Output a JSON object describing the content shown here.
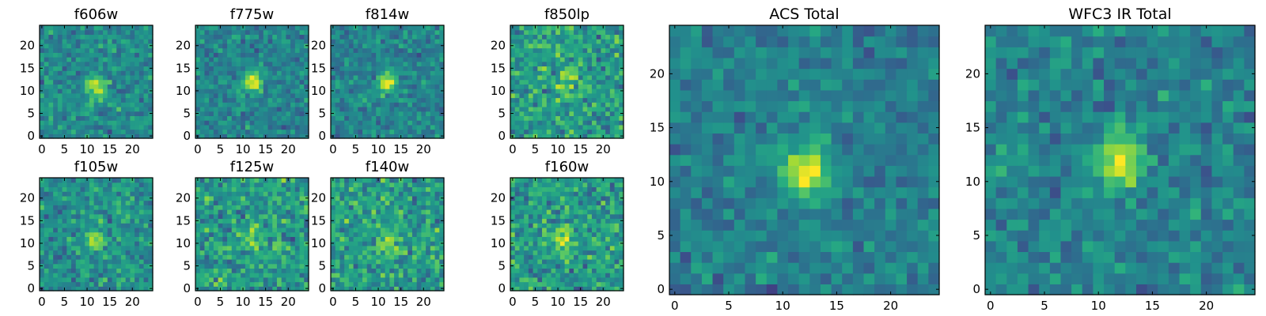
{
  "chart_data": {
    "type": "heatmap",
    "colormap": "viridis",
    "panels": [
      {
        "id": "f606w",
        "title": "f606w",
        "x_ticks": [
          "0",
          "5",
          "10",
          "15",
          "20"
        ],
        "y_ticks": [
          "0",
          "5",
          "10",
          "15",
          "20"
        ],
        "xlim": [
          -0.5,
          24.5
        ],
        "ylim": [
          -0.5,
          24.5
        ],
        "source_center": [
          12,
          11
        ],
        "source_strength": 0.45,
        "noise": 0.55,
        "seed": 11
      },
      {
        "id": "f775w",
        "title": "f775w",
        "x_ticks": [
          "0",
          "5",
          "10",
          "15",
          "20"
        ],
        "y_ticks": [
          "0",
          "5",
          "10",
          "15",
          "20"
        ],
        "xlim": [
          -0.5,
          24.5
        ],
        "ylim": [
          -0.5,
          24.5
        ],
        "source_center": [
          12,
          12
        ],
        "source_strength": 0.5,
        "noise": 0.5,
        "seed": 23
      },
      {
        "id": "f814w",
        "title": "f814w",
        "x_ticks": [
          "0",
          "5",
          "10",
          "15",
          "20"
        ],
        "y_ticks": [
          "0",
          "5",
          "10",
          "15",
          "20"
        ],
        "xlim": [
          -0.5,
          24.5
        ],
        "ylim": [
          -0.5,
          24.5
        ],
        "source_center": [
          12,
          12
        ],
        "source_strength": 0.45,
        "noise": 0.5,
        "seed": 37
      },
      {
        "id": "f850lp",
        "title": "f850lp",
        "x_ticks": [
          "0",
          "5",
          "10",
          "15",
          "20"
        ],
        "y_ticks": [
          "0",
          "5",
          "10",
          "15",
          "20"
        ],
        "xlim": [
          -0.5,
          24.5
        ],
        "ylim": [
          -0.5,
          24.5
        ],
        "source_center": [
          12,
          12
        ],
        "source_strength": 0.3,
        "noise": 0.7,
        "seed": 41
      },
      {
        "id": "f105w",
        "title": "f105w",
        "x_ticks": [
          "0",
          "5",
          "10",
          "15",
          "20"
        ],
        "y_ticks": [
          "0",
          "5",
          "10",
          "15",
          "20"
        ],
        "xlim": [
          -0.5,
          24.5
        ],
        "ylim": [
          -0.5,
          24.5
        ],
        "source_center": [
          12,
          11
        ],
        "source_strength": 0.4,
        "noise": 0.6,
        "seed": 53
      },
      {
        "id": "f125w",
        "title": "f125w",
        "x_ticks": [
          "0",
          "5",
          "10",
          "15",
          "20"
        ],
        "y_ticks": [
          "0",
          "5",
          "10",
          "15",
          "20"
        ],
        "xlim": [
          -0.5,
          24.5
        ],
        "ylim": [
          -0.5,
          24.5
        ],
        "source_center": [
          12,
          12
        ],
        "source_strength": 0.3,
        "noise": 0.7,
        "seed": 67
      },
      {
        "id": "f140w",
        "title": "f140w",
        "x_ticks": [
          "0",
          "5",
          "10",
          "15",
          "20"
        ],
        "y_ticks": [
          "0",
          "5",
          "10",
          "15",
          "20"
        ],
        "xlim": [
          -0.5,
          24.5
        ],
        "ylim": [
          -0.5,
          24.5
        ],
        "source_center": [
          12,
          10
        ],
        "source_strength": 0.3,
        "noise": 0.7,
        "seed": 79
      },
      {
        "id": "f160w",
        "title": "f160w",
        "x_ticks": [
          "0",
          "5",
          "10",
          "15",
          "20"
        ],
        "y_ticks": [
          "0",
          "5",
          "10",
          "15",
          "20"
        ],
        "xlim": [
          -0.5,
          24.5
        ],
        "ylim": [
          -0.5,
          24.5
        ],
        "source_center": [
          11,
          11
        ],
        "source_strength": 0.35,
        "noise": 0.7,
        "seed": 83
      },
      {
        "id": "acs-total",
        "title": "ACS Total",
        "x_ticks": [
          "0",
          "5",
          "10",
          "15",
          "20"
        ],
        "y_ticks": [
          "0",
          "5",
          "10",
          "15",
          "20"
        ],
        "xlim": [
          -0.5,
          24.5
        ],
        "ylim": [
          -0.5,
          24.5
        ],
        "source_center": [
          12,
          11
        ],
        "source_strength": 0.6,
        "noise": 0.45,
        "seed": 97
      },
      {
        "id": "wfc3-ir-total",
        "title": "WFC3 IR Total",
        "x_ticks": [
          "0",
          "5",
          "10",
          "15",
          "20"
        ],
        "y_ticks": [
          "0",
          "5",
          "10",
          "15",
          "20"
        ],
        "xlim": [
          -0.5,
          24.5
        ],
        "ylim": [
          -0.5,
          24.5
        ],
        "source_center": [
          12,
          12
        ],
        "source_strength": 0.55,
        "noise": 0.5,
        "seed": 101
      }
    ]
  }
}
